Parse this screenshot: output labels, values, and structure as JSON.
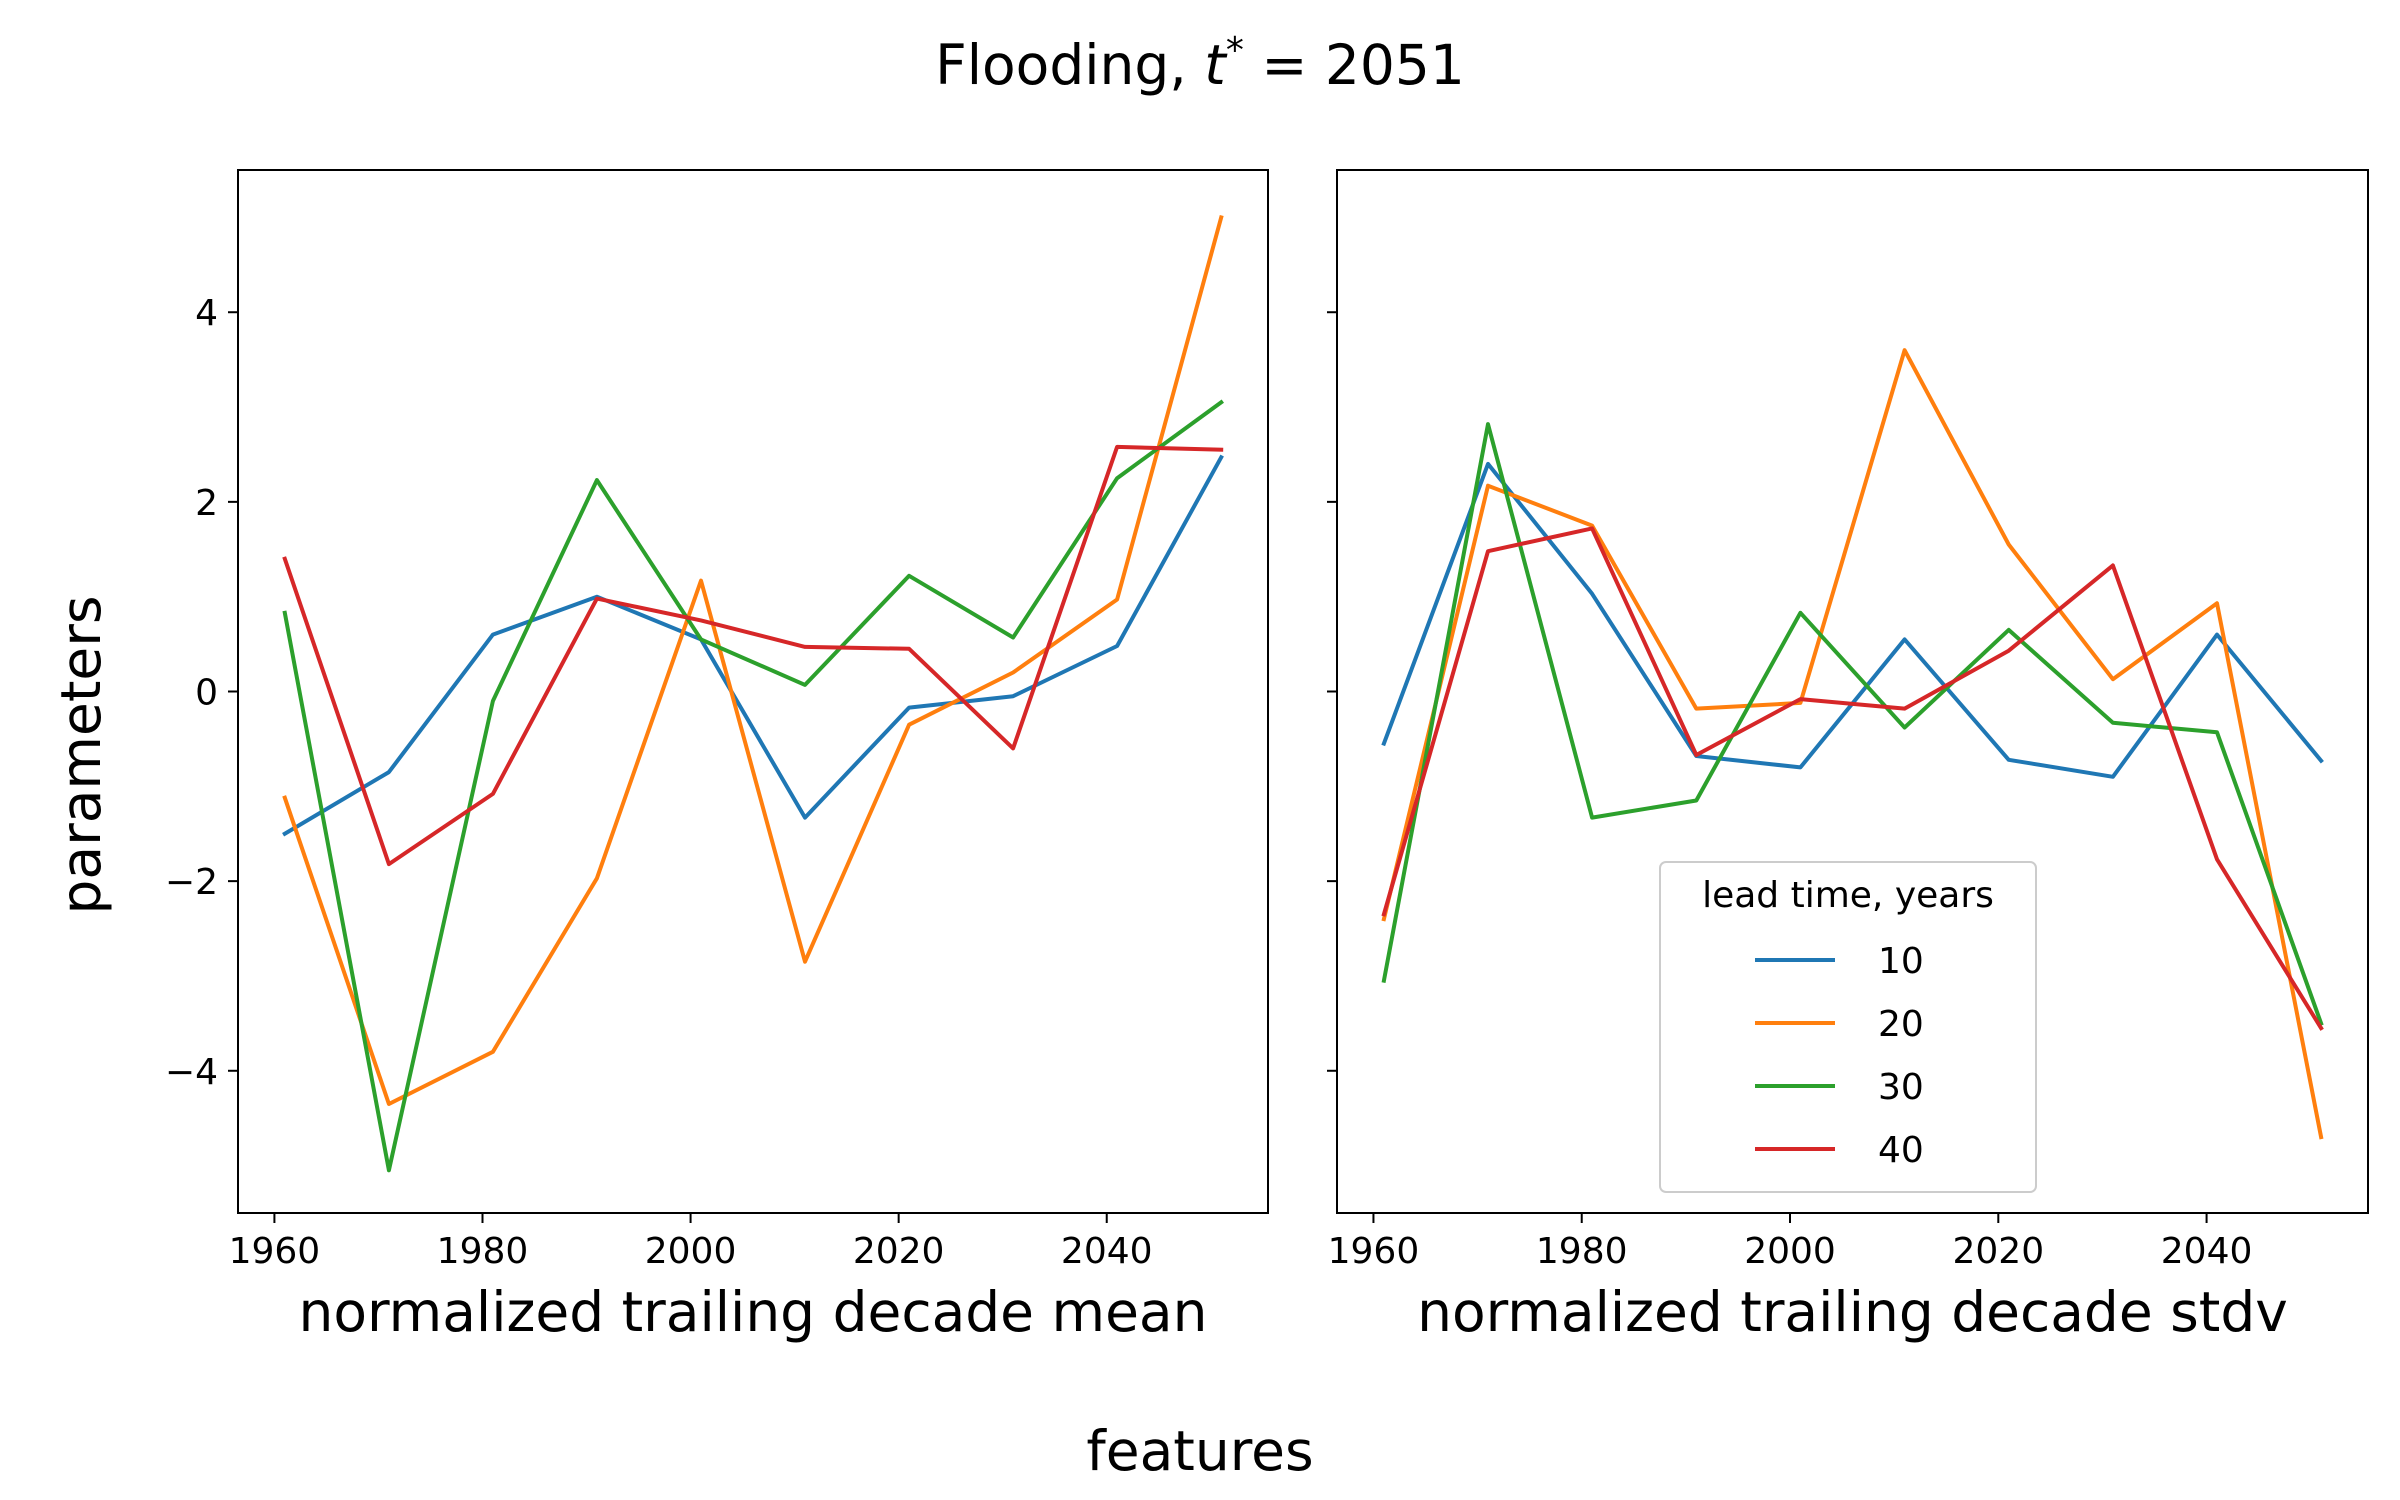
{
  "suptitle": {
    "prefix": "Flooding, ",
    "var": "t",
    "sup": "*",
    "suffix": " = 2051"
  },
  "supxlabel": "features",
  "supylabel": "parameters",
  "colors": {
    "10": "#1f77b4",
    "20": "#ff7f0e",
    "30": "#2ca02c",
    "40": "#d62728"
  },
  "chart_data": [
    {
      "type": "line",
      "title": "",
      "xlabel": "normalized trailing decade mean",
      "ylabel": "parameters",
      "xlim": [
        1956.5,
        2055.5
      ],
      "ylim": [
        -5.5,
        5.5
      ],
      "xticks": [
        1960,
        1980,
        2000,
        2020,
        2040
      ],
      "yticks": [
        -4,
        -2,
        0,
        2,
        4
      ],
      "ytick_labels": [
        "−4",
        "−2",
        "0",
        "2",
        "4"
      ],
      "grid": false,
      "x": [
        1961,
        1971,
        1981,
        1991,
        2001,
        2011,
        2021,
        2031,
        2041,
        2051
      ],
      "series": [
        {
          "name": "10",
          "color": "#1f77b4",
          "values": [
            -1.5,
            -0.85,
            0.6,
            1.0,
            0.55,
            -1.33,
            -0.17,
            -0.05,
            0.48,
            2.47
          ]
        },
        {
          "name": "20",
          "color": "#ff7f0e",
          "values": [
            -1.12,
            -4.35,
            -3.8,
            -1.97,
            1.17,
            -2.85,
            -0.35,
            0.2,
            0.97,
            5.0
          ]
        },
        {
          "name": "30",
          "color": "#2ca02c",
          "values": [
            0.83,
            -5.05,
            -0.1,
            2.23,
            0.55,
            0.07,
            1.22,
            0.57,
            2.25,
            3.05
          ]
        },
        {
          "name": "40",
          "color": "#d62728",
          "values": [
            1.4,
            -1.82,
            -1.08,
            0.98,
            0.75,
            0.47,
            0.45,
            -0.6,
            2.58,
            2.55
          ]
        }
      ]
    },
    {
      "type": "line",
      "title": "",
      "xlabel": "normalized trailing decade stdv",
      "ylabel": "",
      "xlim": [
        1956.5,
        2055.5
      ],
      "ylim": [
        -5.5,
        5.5
      ],
      "xticks": [
        1960,
        1980,
        2000,
        2020,
        2040
      ],
      "yticks": [
        -4,
        -2,
        0,
        2,
        4
      ],
      "ytick_labels": [],
      "grid": false,
      "legend": {
        "title": "lead time, years",
        "placement": "lower-right"
      },
      "x": [
        1961,
        1971,
        1981,
        1991,
        2001,
        2011,
        2021,
        2031,
        2041,
        2051
      ],
      "series": [
        {
          "name": "10",
          "color": "#1f77b4",
          "values": [
            -0.55,
            2.4,
            1.03,
            -0.68,
            -0.8,
            0.55,
            -0.72,
            -0.9,
            0.6,
            -0.73
          ]
        },
        {
          "name": "20",
          "color": "#ff7f0e",
          "values": [
            -2.4,
            2.17,
            1.75,
            -0.18,
            -0.12,
            3.6,
            1.55,
            0.13,
            0.93,
            -4.7
          ]
        },
        {
          "name": "30",
          "color": "#2ca02c",
          "values": [
            -3.05,
            2.82,
            -1.33,
            -1.15,
            0.83,
            -0.38,
            0.65,
            -0.33,
            -0.43,
            -3.5
          ]
        },
        {
          "name": "40",
          "color": "#d62728",
          "values": [
            -2.35,
            1.48,
            1.72,
            -0.67,
            -0.08,
            -0.18,
            0.43,
            1.33,
            -1.77,
            -3.55
          ]
        }
      ]
    }
  ]
}
